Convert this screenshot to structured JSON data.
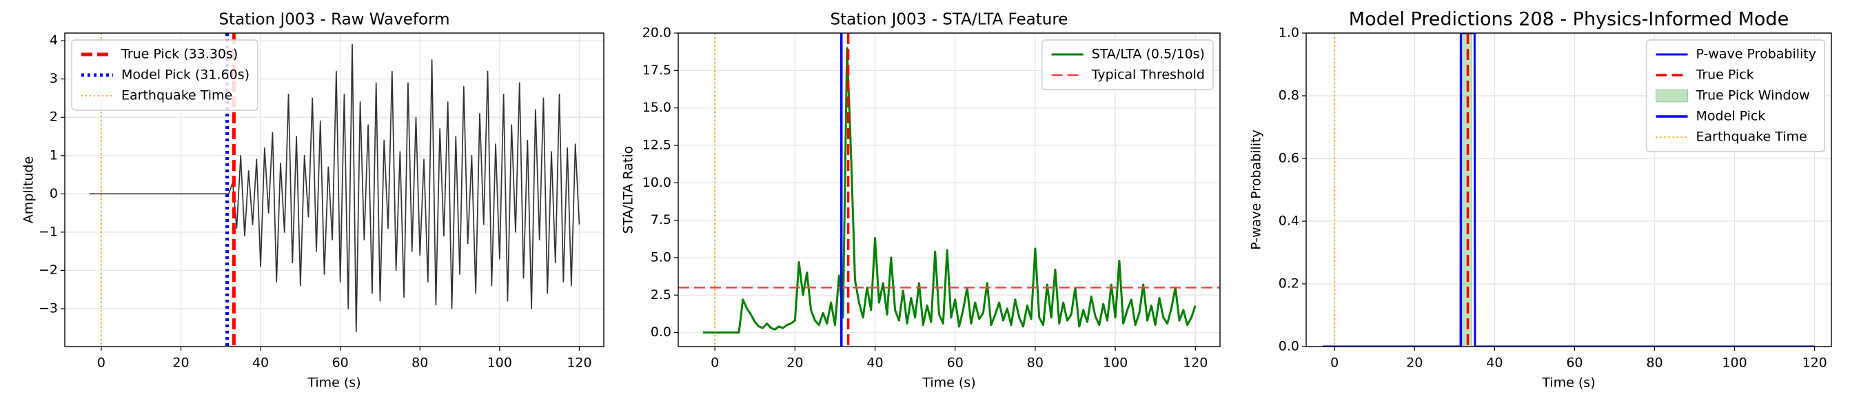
{
  "chart_data": [
    {
      "type": "line",
      "title": "Station J003 - Raw Waveform",
      "xlabel": "Time (s)",
      "ylabel": "Amplitude",
      "x": [
        -3,
        -2,
        -1,
        0,
        1,
        2,
        3,
        4,
        5,
        6,
        7,
        8,
        9,
        10,
        11,
        12,
        13,
        14,
        15,
        16,
        17,
        18,
        19,
        20,
        21,
        22,
        23,
        24,
        25,
        26,
        27,
        28,
        29,
        30,
        31,
        32,
        33,
        34,
        35,
        36,
        37,
        38,
        39,
        40,
        41,
        42,
        43,
        44,
        45,
        46,
        47,
        48,
        49,
        50,
        51,
        52,
        53,
        54,
        55,
        56,
        57,
        58,
        59,
        60,
        61,
        62,
        63,
        64,
        65,
        66,
        67,
        68,
        69,
        70,
        71,
        72,
        73,
        74,
        75,
        76,
        77,
        78,
        79,
        80,
        81,
        82,
        83,
        84,
        85,
        86,
        87,
        88,
        89,
        90,
        91,
        92,
        93,
        94,
        95,
        96,
        97,
        98,
        99,
        100,
        101,
        102,
        103,
        104,
        105,
        106,
        107,
        108,
        109,
        110,
        111,
        112,
        113,
        114,
        115,
        116,
        117,
        118,
        119,
        120
      ],
      "series": [
        {
          "color": "#333333",
          "values": [
            0,
            0,
            0,
            0,
            0,
            0,
            0,
            0,
            0,
            0,
            0,
            0,
            0,
            0,
            0,
            0,
            0,
            0,
            0,
            0,
            0,
            0,
            0,
            0,
            0,
            0,
            0,
            0,
            0,
            0,
            0,
            0,
            0,
            0,
            0,
            0,
            0.3,
            -0.9,
            1.0,
            -1.1,
            0.6,
            -0.8,
            0.9,
            -1.9,
            1.2,
            -0.5,
            1.6,
            -2.3,
            0.8,
            -1.0,
            2.6,
            -1.8,
            1.5,
            -2.4,
            1.0,
            -0.6,
            2.5,
            -1.5,
            1.9,
            -2.1,
            0.7,
            -1.2,
            3.2,
            -2.3,
            2.6,
            -3.0,
            3.9,
            -3.6,
            2.4,
            -1.2,
            1.8,
            -2.6,
            2.9,
            -2.8,
            1.4,
            -0.9,
            3.2,
            -2.0,
            1.1,
            -2.7,
            2.9,
            -1.5,
            2.0,
            -1.6,
            0.9,
            -2.3,
            3.5,
            -2.9,
            1.7,
            -1.1,
            2.4,
            -3.0,
            1.5,
            -2.1,
            2.8,
            -1.3,
            1.0,
            -2.6,
            2.1,
            -0.8,
            3.2,
            -2.4,
            1.3,
            -1.7,
            2.6,
            -2.8,
            1.8,
            -1.0,
            2.9,
            -2.2,
            1.4,
            -3.0,
            2.2,
            -1.2,
            2.5,
            -2.6,
            1.1,
            -1.8,
            2.6,
            -2.3,
            1.2,
            -2.4,
            1.3,
            -0.8
          ]
        }
      ],
      "overlays": [
        {
          "kind": "vline",
          "name": "True Pick (33.30s)",
          "x": 33.3,
          "color": "#ff0000",
          "style": "dashed"
        },
        {
          "kind": "vline",
          "name": "Model Pick (31.60s)",
          "x": 31.6,
          "color": "#0000ff",
          "style": "dotted"
        },
        {
          "kind": "vline",
          "name": "Earthquake Time",
          "x": 0,
          "color": "#ffa500",
          "style": "fine-dotted"
        }
      ],
      "xlim": [
        -9.15,
        126.15
      ],
      "ylim": [
        -3.99,
        4.2
      ],
      "xticks": [
        0,
        20,
        40,
        60,
        80,
        100,
        120
      ],
      "yticks": [
        {
          "value": -3,
          "label": "−3"
        },
        {
          "value": -2,
          "label": "−2"
        },
        {
          "value": -1,
          "label": "−1"
        },
        0,
        1,
        2,
        3,
        4
      ],
      "grid": true,
      "legend": "upper left"
    },
    {
      "type": "line",
      "title": "Station J003 - STA/LTA Feature",
      "xlabel": "Time (s)",
      "ylabel": "STA/LTA Ratio",
      "x": [
        -3,
        -2,
        -1,
        0,
        1,
        2,
        3,
        4,
        5,
        6,
        7,
        8,
        9,
        10,
        11,
        12,
        13,
        14,
        15,
        16,
        17,
        18,
        19,
        20,
        21,
        22,
        23,
        24,
        25,
        26,
        27,
        28,
        29,
        30,
        31,
        32,
        33,
        34,
        35,
        36,
        37,
        38,
        39,
        40,
        41,
        42,
        43,
        44,
        45,
        46,
        47,
        48,
        49,
        50,
        51,
        52,
        53,
        54,
        55,
        56,
        57,
        58,
        59,
        60,
        61,
        62,
        63,
        64,
        65,
        66,
        67,
        68,
        69,
        70,
        71,
        72,
        73,
        74,
        75,
        76,
        77,
        78,
        79,
        80,
        81,
        82,
        83,
        84,
        85,
        86,
        87,
        88,
        89,
        90,
        91,
        92,
        93,
        94,
        95,
        96,
        97,
        98,
        99,
        100,
        101,
        102,
        103,
        104,
        105,
        106,
        107,
        108,
        109,
        110,
        111,
        112,
        113,
        114,
        115,
        116,
        117,
        118,
        119,
        120
      ],
      "series": [
        {
          "name": "STA/LTA (0.5/10s)",
          "color": "#008000",
          "values": [
            0,
            0,
            0,
            0,
            0,
            0,
            0,
            0,
            0,
            0,
            2.2,
            1.6,
            1.2,
            0.7,
            0.4,
            0.3,
            0.6,
            0.3,
            0.2,
            0.4,
            0.3,
            0.5,
            0.6,
            0.8,
            4.7,
            2.5,
            4.0,
            1.5,
            0.8,
            0.5,
            1.3,
            0.6,
            2.0,
            0.5,
            3.8,
            1.0,
            19.0,
            12.0,
            3.5,
            2.0,
            1.0,
            3.0,
            1.5,
            6.3,
            2.0,
            3.3,
            1.2,
            5.0,
            1.5,
            0.8,
            2.8,
            0.6,
            2.3,
            1.0,
            3.3,
            0.5,
            1.8,
            0.7,
            5.4,
            1.2,
            0.6,
            5.5,
            1.0,
            2.2,
            0.4,
            1.5,
            3.0,
            0.6,
            2.0,
            0.9,
            1.3,
            3.3,
            0.5,
            1.2,
            2.0,
            0.8,
            1.6,
            0.5,
            2.2,
            1.0,
            0.4,
            1.8,
            0.9,
            5.6,
            1.0,
            0.5,
            3.2,
            1.0,
            4.2,
            0.6,
            2.0,
            0.8,
            1.2,
            3.0,
            0.4,
            1.5,
            0.7,
            2.4,
            1.1,
            0.5,
            1.9,
            0.8,
            3.2,
            1.0,
            4.8,
            0.6,
            1.5,
            2.2,
            0.5,
            1.3,
            3.2,
            0.8,
            1.8,
            0.5,
            2.3,
            1.0,
            0.6,
            1.6,
            3.0,
            0.8,
            1.5,
            0.5,
            1.0,
            1.8
          ]
        }
      ],
      "overlays": [
        {
          "kind": "hline",
          "name": "Typical Threshold",
          "y": 3,
          "color": "#ff4444",
          "style": "dashed"
        },
        {
          "kind": "vline",
          "x": 31.6,
          "color": "#0000ff",
          "style": "solid"
        },
        {
          "kind": "vline",
          "x": 33.3,
          "color": "#ff0000",
          "style": "dashed"
        },
        {
          "kind": "vline",
          "x": 0,
          "color": "#ffa500",
          "style": "fine-dotted"
        }
      ],
      "xlim": [
        -9.15,
        126.15
      ],
      "ylim": [
        -0.94,
        20
      ],
      "xticks": [
        0,
        20,
        40,
        60,
        80,
        100,
        120
      ],
      "yticks": [
        {
          "value": 0,
          "label": "0.0"
        },
        {
          "value": 2.5,
          "label": "2.5"
        },
        {
          "value": 5,
          "label": "5.0"
        },
        {
          "value": 7.5,
          "label": "7.5"
        },
        {
          "value": 10,
          "label": "10.0"
        },
        {
          "value": 12.5,
          "label": "12.5"
        },
        {
          "value": 15,
          "label": "15.0"
        },
        {
          "value": 17.5,
          "label": "17.5"
        },
        {
          "value": 20,
          "label": "20.0"
        }
      ],
      "grid": true,
      "legend": "upper right"
    },
    {
      "type": "line",
      "title": "Model Predictions 208 - Physics-Informed Mode",
      "xlabel": "Time (s)",
      "ylabel": "P-wave Probability",
      "x": [
        -3,
        31.5,
        31.6,
        35,
        35.1,
        120
      ],
      "series": [
        {
          "name": "P-wave Probability",
          "color": "#0000ff",
          "values": [
            0,
            0,
            1,
            1,
            0,
            0
          ]
        }
      ],
      "overlays": [
        {
          "kind": "vline",
          "name": "True Pick",
          "x": 33.3,
          "color": "#ff0000",
          "style": "dashed"
        },
        {
          "kind": "span",
          "name": "True Pick Window",
          "x0": 32.3,
          "x1": 34.3,
          "color": "#2ca02c"
        },
        {
          "kind": "vline",
          "name": "Model Pick",
          "x": 31.6,
          "color": "#0000ff",
          "style": "solid"
        },
        {
          "kind": "vline",
          "name": "Earthquake Time",
          "x": 0,
          "color": "#ffa500",
          "style": "fine-dotted"
        }
      ],
      "xlim": [
        -7.1,
        124.2
      ],
      "ylim": [
        0,
        1
      ],
      "xticks": [
        0,
        20,
        40,
        60,
        80,
        100,
        120
      ],
      "yticks": [
        {
          "value": 0,
          "label": "0.0"
        },
        {
          "value": 0.2,
          "label": "0.2"
        },
        {
          "value": 0.4,
          "label": "0.4"
        },
        {
          "value": 0.6,
          "label": "0.6"
        },
        {
          "value": 0.8,
          "label": "0.8"
        },
        {
          "value": 1,
          "label": "1.0"
        }
      ],
      "grid": true,
      "legend": "upper right"
    }
  ]
}
